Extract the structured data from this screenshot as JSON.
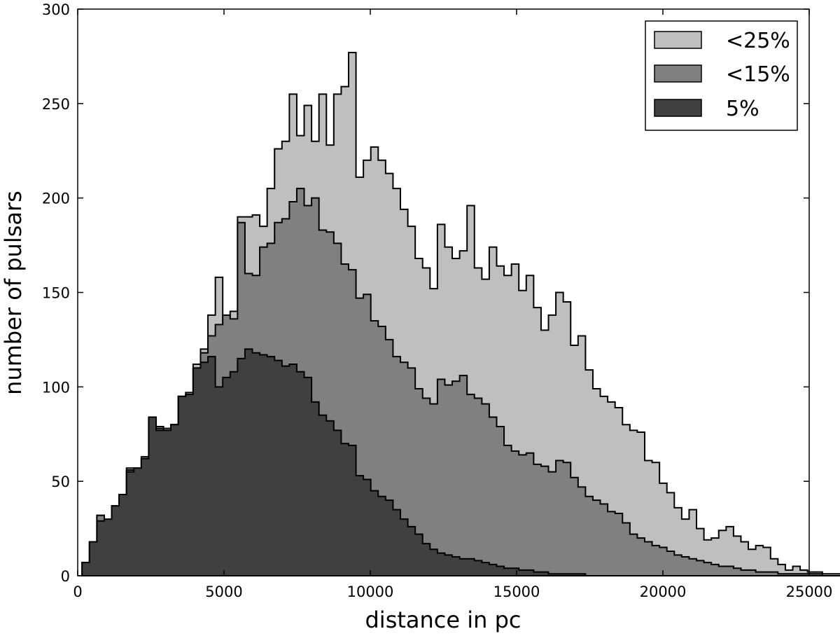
{
  "chart_data": {
    "type": "histogram",
    "xlabel": "distance in pc",
    "ylabel": "number of pulsars",
    "xlim": [
      0,
      25000
    ],
    "ylim": [
      0,
      300
    ],
    "xticks": [
      "0",
      "5000",
      "10000",
      "15000",
      "20000",
      "25000"
    ],
    "yticks": [
      "0",
      "50",
      "100",
      "150",
      "200",
      "250",
      "300"
    ],
    "grid": false,
    "legend_position": "top-right",
    "bin_start": 150,
    "bin_width": 253,
    "series": [
      {
        "name": "<25%",
        "color": "#bfbfbf",
        "values": [
          7,
          18,
          32,
          29,
          37,
          43,
          57,
          57,
          63,
          84,
          79,
          78,
          80,
          95,
          97,
          112,
          120,
          138,
          158,
          125,
          140,
          190,
          190,
          191,
          185,
          205,
          226,
          230,
          255,
          233,
          249,
          230,
          255,
          228,
          255,
          259,
          277,
          211,
          220,
          227,
          220,
          213,
          205,
          194,
          185,
          168,
          163,
          152,
          186,
          174,
          168,
          172,
          196,
          163,
          157,
          174,
          164,
          159,
          165,
          151,
          159,
          142,
          130,
          138,
          150,
          145,
          122,
          127,
          109,
          99,
          95,
          92,
          89,
          80,
          77,
          76,
          61,
          60,
          49,
          44,
          36,
          30,
          35,
          25,
          19,
          20,
          24,
          26,
          21,
          18,
          14,
          16,
          15,
          9,
          6,
          3,
          5,
          3,
          2,
          2,
          1,
          1,
          1,
          1,
          1,
          1,
          1,
          1,
          0,
          0,
          1,
          1,
          0,
          1,
          0
        ]
      },
      {
        "name": "<15%",
        "color": "#808080",
        "values": [
          7,
          18,
          32,
          29,
          37,
          43,
          56,
          56,
          62,
          83,
          78,
          77,
          80,
          95,
          96,
          110,
          118,
          127,
          133,
          138,
          136,
          187,
          160,
          159,
          174,
          176,
          187,
          189,
          198,
          205,
          196,
          200,
          183,
          182,
          176,
          165,
          162,
          147,
          149,
          135,
          132,
          125,
          116,
          113,
          110,
          99,
          94,
          91,
          104,
          101,
          103,
          106,
          96,
          94,
          91,
          84,
          79,
          69,
          66,
          64,
          65,
          59,
          58,
          55,
          61,
          60,
          52,
          47,
          42,
          40,
          38,
          34,
          33,
          28,
          22,
          20,
          18,
          16,
          15,
          13,
          11,
          10,
          9,
          8,
          7,
          6,
          5,
          5,
          4,
          3,
          3,
          2,
          2,
          2,
          1,
          1,
          1,
          1,
          1,
          1,
          0,
          0,
          0,
          0,
          0,
          0,
          0,
          0,
          0,
          0,
          0,
          0,
          0,
          0,
          0
        ]
      },
      {
        "name": "5%",
        "color": "#404040",
        "values": [
          7,
          18,
          29,
          30,
          37,
          43,
          55,
          57,
          62,
          84,
          77,
          77,
          80,
          95,
          96,
          110,
          113,
          116,
          100,
          105,
          108,
          115,
          120,
          118,
          117,
          116,
          114,
          111,
          112,
          108,
          105,
          92,
          85,
          82,
          77,
          70,
          69,
          53,
          51,
          45,
          42,
          40,
          35,
          30,
          26,
          22,
          17,
          14,
          12,
          11,
          10,
          9,
          9,
          8,
          7,
          6,
          5,
          4,
          4,
          3,
          3,
          2,
          2,
          1,
          1,
          1,
          1,
          1,
          0,
          0,
          0,
          0,
          0,
          0,
          0,
          0,
          0,
          0,
          0,
          0,
          0,
          0,
          0,
          0,
          0,
          0,
          0,
          0,
          0,
          0,
          0,
          0,
          0,
          0,
          0,
          0,
          0,
          0,
          0,
          0,
          0,
          0,
          0,
          0,
          0,
          0,
          0,
          0,
          0,
          0,
          0,
          0,
          0,
          0,
          0
        ]
      }
    ]
  }
}
